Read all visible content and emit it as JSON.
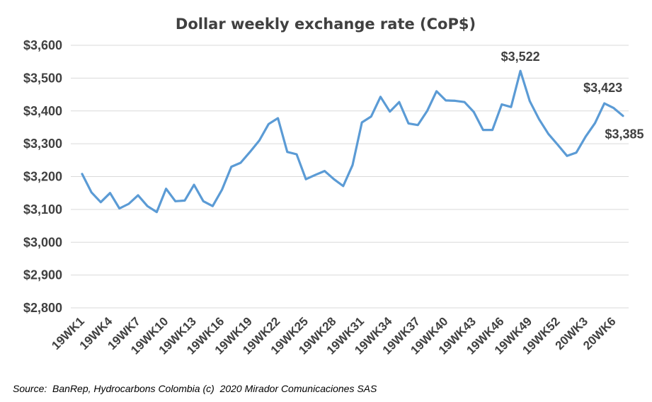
{
  "chart_data": {
    "type": "line",
    "title": "Dollar weekly exchange rate (CoP$)",
    "xlabel": "",
    "ylabel": "",
    "ylim": [
      2800,
      3600
    ],
    "y_tick_values": [
      2800,
      2900,
      3000,
      3100,
      3200,
      3300,
      3400,
      3500,
      3600
    ],
    "y_tick_labels": [
      "$2,800",
      "$2,900",
      "$3,000",
      "$3,100",
      "$3,200",
      "$3,300",
      "$3,400",
      "$3,500",
      "$3,600"
    ],
    "x": [
      "19WK1",
      "19WK2",
      "19WK3",
      "19WK4",
      "19WK5",
      "19WK6",
      "19WK7",
      "19WK8",
      "19WK9",
      "19WK10",
      "19WK11",
      "19WK12",
      "19WK13",
      "19WK14",
      "19WK15",
      "19WK16",
      "19WK17",
      "19WK18",
      "19WK19",
      "19WK20",
      "19WK21",
      "19WK22",
      "19WK23",
      "19WK24",
      "19WK25",
      "19WK26",
      "19WK27",
      "19WK28",
      "19WK29",
      "19WK30",
      "19WK31",
      "19WK32",
      "19WK33",
      "19WK34",
      "19WK35",
      "19WK36",
      "19WK37",
      "19WK38",
      "19WK39",
      "19WK40",
      "19WK41",
      "19WK42",
      "19WK43",
      "19WK44",
      "19WK45",
      "19WK46",
      "19WK47",
      "19WK48",
      "19WK49",
      "19WK50",
      "19WK51",
      "19WK52",
      "20WK1",
      "20WK2",
      "20WK3",
      "20WK4",
      "20WK5",
      "20WK6",
      "20WK7"
    ],
    "x_tick_labels_shown": [
      "19WK1",
      "19WK4",
      "19WK7",
      "19WK10",
      "19WK13",
      "19WK16",
      "19WK19",
      "19WK22",
      "19WK25",
      "19WK28",
      "19WK31",
      "19WK34",
      "19WK37",
      "19WK40",
      "19WK43",
      "19WK46",
      "19WK49",
      "19WK52",
      "20WK3",
      "20WK6"
    ],
    "series": [
      {
        "name": "",
        "color": "#5b9bd5",
        "values": [
          3208,
          3152,
          3122,
          3150,
          3103,
          3117,
          3143,
          3110,
          3092,
          3163,
          3125,
          3127,
          3175,
          3125,
          3110,
          3160,
          3230,
          3242,
          3275,
          3310,
          3360,
          3378,
          3275,
          3268,
          3192,
          3205,
          3217,
          3192,
          3171,
          3235,
          3365,
          3383,
          3443,
          3398,
          3427,
          3362,
          3357,
          3400,
          3460,
          3432,
          3431,
          3427,
          3397,
          3342,
          3342,
          3420,
          3412,
          3522,
          3430,
          3375,
          3330,
          3297,
          3263,
          3273,
          3322,
          3363,
          3423,
          3409,
          3385
        ]
      }
    ],
    "annotations": [
      {
        "label": "$3,522",
        "x": "19WK48",
        "y": 3522
      },
      {
        "label": "$3,423",
        "x": "20WK5",
        "y": 3423
      },
      {
        "label": "$3,385",
        "x": "20WK7",
        "y": 3385
      }
    ],
    "grid": true,
    "legend": "none"
  },
  "footer": {
    "source": "Source:  BanRep, Hydrocarbons Colombia (c)  2020 Mirador Comunicaciones SAS"
  }
}
